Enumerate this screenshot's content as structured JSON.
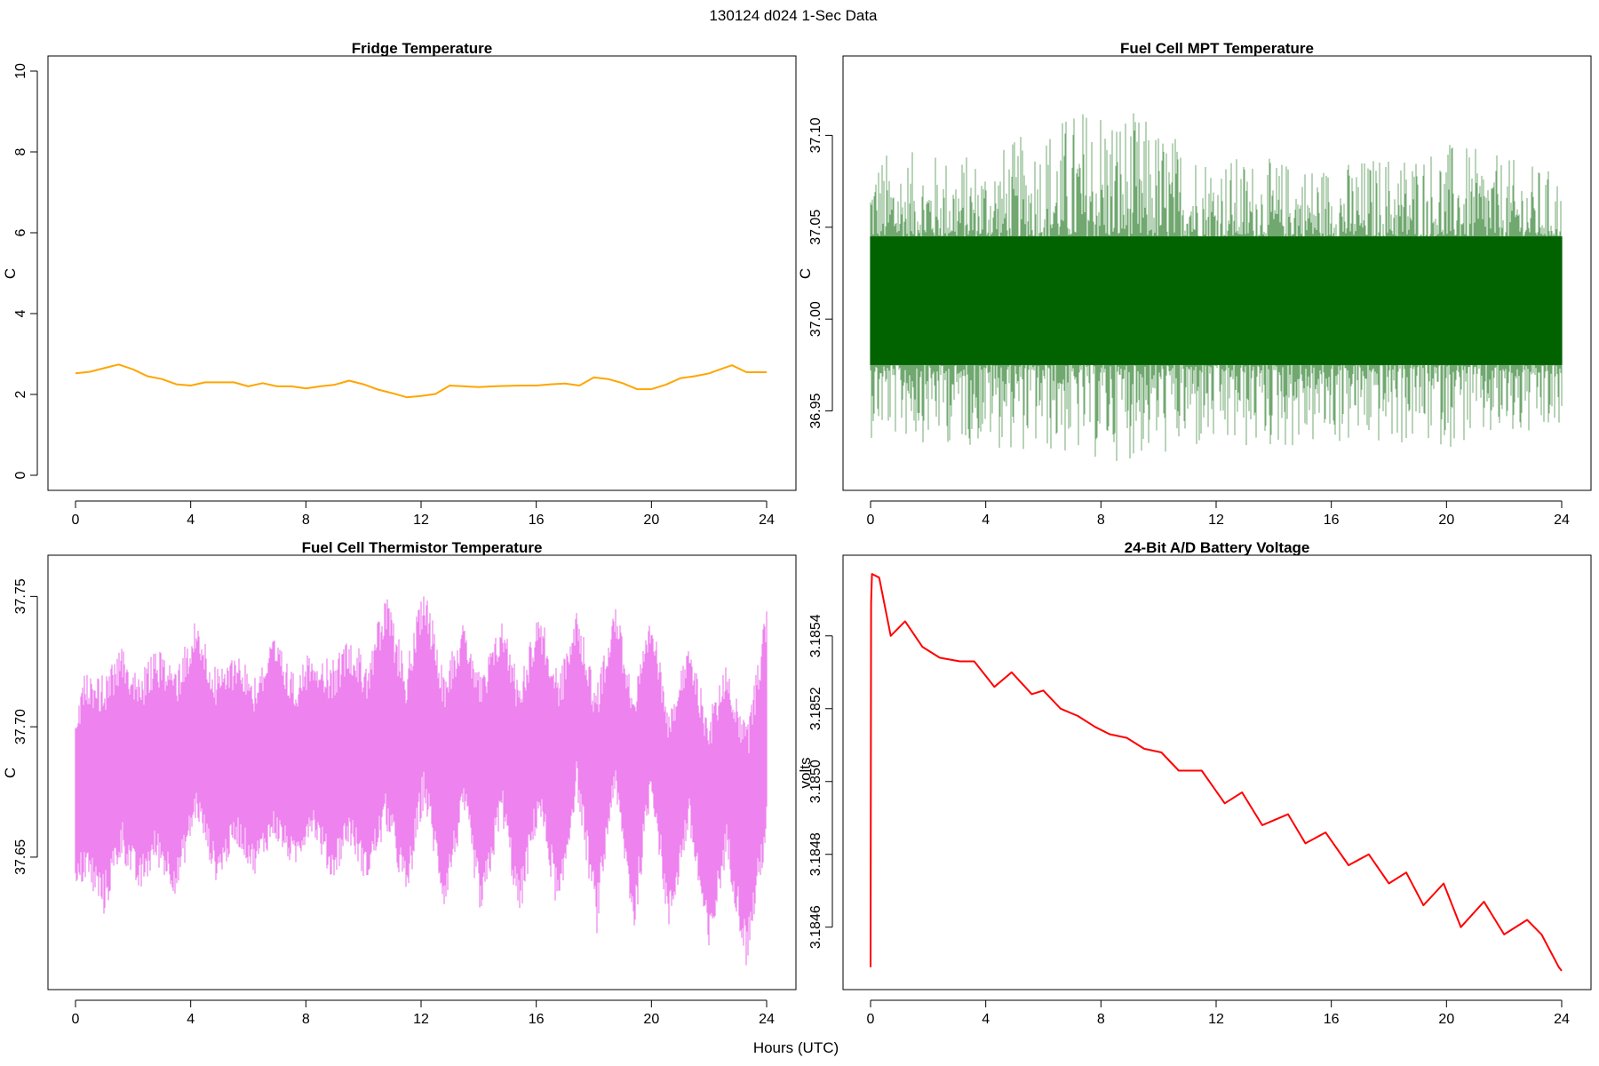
{
  "figure": {
    "suptitle": "130124   d024   1-Sec Data",
    "xlabel": "Hours (UTC)"
  },
  "chart_data": [
    {
      "type": "line",
      "title": "Fridge Temperature",
      "xlabel": "",
      "ylabel": "C",
      "color": "#ffa500",
      "style": "line",
      "xlim": [
        0,
        24
      ],
      "ylim": [
        0,
        10
      ],
      "xticks": [
        0,
        4,
        8,
        12,
        16,
        20,
        24
      ],
      "yticks": [
        0,
        2,
        4,
        6,
        8,
        10
      ],
      "ytick_labels": [
        "0",
        "2",
        "4",
        "6",
        "8",
        "10"
      ],
      "series": [
        {
          "x": [
            0,
            0.5,
            1.0,
            1.5,
            2.0,
            2.5,
            3.0,
            3.5,
            4.0,
            4.5,
            5.0,
            5.5,
            6.0,
            6.5,
            7.0,
            7.5,
            8.0,
            8.5,
            9.0,
            9.5,
            10.0,
            10.5,
            11.0,
            11.5,
            12.0,
            12.5,
            13.0,
            13.5,
            14.0,
            14.5,
            15.0,
            15.5,
            16.0,
            16.5,
            17.0,
            17.5,
            18.0,
            18.5,
            19.0,
            19.5,
            20.0,
            20.5,
            21.0,
            21.5,
            22.0,
            22.5,
            22.8,
            23.3,
            24.0
          ],
          "y": [
            2.52,
            2.56,
            2.65,
            2.74,
            2.62,
            2.45,
            2.38,
            2.25,
            2.22,
            2.3,
            2.3,
            2.3,
            2.2,
            2.28,
            2.2,
            2.2,
            2.15,
            2.2,
            2.24,
            2.34,
            2.25,
            2.12,
            2.03,
            1.93,
            1.96,
            2.01,
            2.22,
            2.2,
            2.18,
            2.2,
            2.21,
            2.22,
            2.22,
            2.25,
            2.27,
            2.22,
            2.42,
            2.38,
            2.28,
            2.13,
            2.13,
            2.24,
            2.4,
            2.45,
            2.52,
            2.65,
            2.72,
            2.55,
            2.55
          ]
        }
      ]
    },
    {
      "type": "line",
      "title": "Fuel Cell MPT Temperature",
      "xlabel": "",
      "ylabel": "C",
      "color": "#006400",
      "style": "noise-band",
      "xlim": [
        0,
        24
      ],
      "ylim": [
        36.915,
        37.135
      ],
      "xticks": [
        0,
        4,
        8,
        12,
        16,
        20,
        24
      ],
      "yticks": [
        36.95,
        37.0,
        37.05,
        37.1
      ],
      "ytick_labels": [
        "36.95",
        "37.00",
        "37.05",
        "37.10"
      ],
      "series": [
        {
          "x": [
            0,
            4,
            8,
            12,
            16,
            20,
            24
          ],
          "center": [
            37.01,
            37.01,
            37.01,
            37.01,
            37.01,
            37.01,
            37.01
          ],
          "core_low": [
            36.975,
            36.975,
            36.975,
            36.975,
            36.975,
            36.975,
            36.975
          ],
          "core_high": [
            37.045,
            37.045,
            37.045,
            37.045,
            37.045,
            37.045,
            37.045
          ],
          "min": [
            36.935,
            36.93,
            36.922,
            36.926,
            36.93,
            36.93,
            36.933
          ],
          "max": [
            37.092,
            37.09,
            37.123,
            37.09,
            37.085,
            37.097,
            37.08
          ]
        }
      ]
    },
    {
      "type": "line",
      "title": "Fuel Cell Thermistor Temperature",
      "xlabel": "",
      "ylabel": "C",
      "color": "#ee82ee",
      "style": "noise-band",
      "xlim": [
        0,
        24
      ],
      "ylim": [
        37.605,
        37.76
      ],
      "xticks": [
        0,
        4,
        8,
        12,
        16,
        20,
        24
      ],
      "yticks": [
        37.65,
        37.7,
        37.75
      ],
      "ytick_labels": [
        "37.65",
        "37.70",
        "37.75"
      ],
      "series": [
        {
          "x": [
            0,
            0.3,
            1.0,
            1.6,
            2.2,
            2.8,
            3.5,
            4.2,
            4.9,
            5.6,
            6.2,
            6.9,
            7.6,
            8.2,
            8.9,
            9.5,
            10.1,
            10.8,
            11.5,
            12.1,
            12.8,
            13.5,
            14.1,
            14.8,
            15.4,
            16.1,
            16.8,
            17.4,
            18.1,
            18.7,
            19.4,
            20.0,
            20.6,
            21.3,
            22.0,
            22.6,
            23.3,
            24.0
          ],
          "center": [
            37.67,
            37.69,
            37.675,
            37.695,
            37.675,
            37.69,
            37.675,
            37.7,
            37.675,
            37.69,
            37.678,
            37.692,
            37.678,
            37.695,
            37.68,
            37.695,
            37.675,
            37.705,
            37.675,
            37.715,
            37.672,
            37.705,
            37.67,
            37.705,
            37.672,
            37.705,
            37.672,
            37.71,
            37.67,
            37.71,
            37.67,
            37.71,
            37.665,
            37.7,
            37.66,
            37.69,
            37.655,
            37.7
          ],
          "min": [
            37.632,
            37.64,
            37.627,
            37.65,
            37.635,
            37.647,
            37.635,
            37.665,
            37.64,
            37.655,
            37.643,
            37.657,
            37.645,
            37.66,
            37.64,
            37.655,
            37.64,
            37.66,
            37.632,
            37.67,
            37.63,
            37.665,
            37.625,
            37.665,
            37.625,
            37.665,
            37.625,
            37.675,
            37.62,
            37.675,
            37.62,
            37.675,
            37.62,
            37.66,
            37.61,
            37.65,
            37.607,
            37.655
          ],
          "max": [
            37.7,
            37.72,
            37.72,
            37.73,
            37.72,
            37.73,
            37.725,
            37.742,
            37.722,
            37.73,
            37.72,
            37.735,
            37.72,
            37.73,
            37.725,
            37.735,
            37.728,
            37.75,
            37.725,
            37.755,
            37.725,
            37.74,
            37.72,
            37.742,
            37.72,
            37.745,
            37.72,
            37.745,
            37.715,
            37.75,
            37.715,
            37.742,
            37.71,
            37.73,
            37.705,
            37.725,
            37.7,
            37.748
          ]
        }
      ]
    },
    {
      "type": "line",
      "title": "24-Bit A/D Battery Voltage",
      "xlabel": "",
      "ylabel": "volts",
      "color": "#ff0000",
      "style": "line",
      "xlim": [
        0,
        24
      ],
      "ylim": [
        3.18447,
        3.18558
      ],
      "xticks": [
        0,
        4,
        8,
        12,
        16,
        20,
        24
      ],
      "yticks": [
        3.1846,
        3.1848,
        3.185,
        3.1852,
        3.1854
      ],
      "ytick_labels": [
        "3.1846",
        "3.1848",
        "3.1850",
        "3.1852",
        "3.1854"
      ],
      "series": [
        {
          "x": [
            0.0,
            0.02,
            0.05,
            0.3,
            0.7,
            1.2,
            1.8,
            2.4,
            3.1,
            3.6,
            4.3,
            4.9,
            5.6,
            6.0,
            6.6,
            7.2,
            7.8,
            8.3,
            8.9,
            9.5,
            10.1,
            10.7,
            11.5,
            12.3,
            12.9,
            13.6,
            14.5,
            15.1,
            15.8,
            16.6,
            17.3,
            18.0,
            18.6,
            19.2,
            19.9,
            20.5,
            21.3,
            22.0,
            22.8,
            23.3,
            23.9,
            24.0
          ],
          "y": [
            3.18449,
            3.18549,
            3.18557,
            3.18556,
            3.1854,
            3.18544,
            3.18537,
            3.18534,
            3.18533,
            3.18533,
            3.18526,
            3.1853,
            3.18524,
            3.18525,
            3.1852,
            3.18518,
            3.18515,
            3.18513,
            3.18512,
            3.18509,
            3.18508,
            3.18503,
            3.18503,
            3.18494,
            3.18497,
            3.18488,
            3.18491,
            3.18483,
            3.18486,
            3.18477,
            3.1848,
            3.18472,
            3.18475,
            3.18466,
            3.18472,
            3.1846,
            3.18467,
            3.18458,
            3.18462,
            3.18458,
            3.18449,
            3.18448
          ]
        }
      ]
    }
  ]
}
